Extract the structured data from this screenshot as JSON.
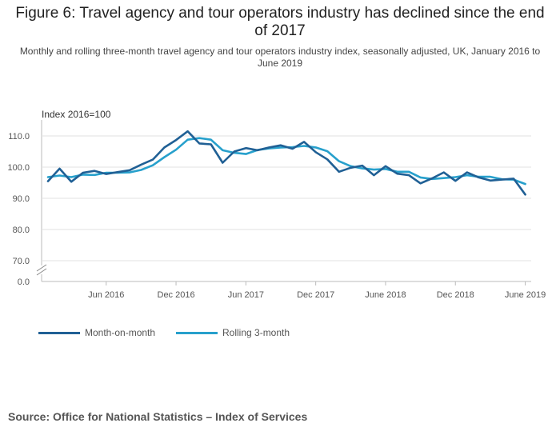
{
  "chart_data": {
    "type": "line",
    "title": "Figure 6: Travel agency and tour operators industry has declined since the end of 2017",
    "subtitle": "Monthly and rolling three-month travel agency and tour operators industry index, seasonally adjusted, UK, January 2016 to June 2019",
    "ylabel": "Index 2016=100",
    "y_ticks": [
      "110.0",
      "100.0",
      "90.0",
      "80.0",
      "70.0",
      "0.0"
    ],
    "y_break": true,
    "x_tick_labels": [
      {
        "label": "Jun 2016",
        "index": 5
      },
      {
        "label": "Dec 2016",
        "index": 11
      },
      {
        "label": "Jun 2017",
        "index": 17
      },
      {
        "label": "Dec 2017",
        "index": 23
      },
      {
        "label": "June 2018",
        "index": 29
      },
      {
        "label": "Dec 2018",
        "index": 35
      },
      {
        "label": "June 2019",
        "index": 41
      }
    ],
    "x_start": "Jan 2016",
    "x_end": "Jun 2019",
    "series": [
      {
        "name": "Month-on-month",
        "color": "#206095",
        "values": [
          95.5,
          99.5,
          95.3,
          98.2,
          98.8,
          97.8,
          98.4,
          99.0,
          100.8,
          102.4,
          106.3,
          108.7,
          111.5,
          107.6,
          107.3,
          101.4,
          105.0,
          106.1,
          105.4,
          106.3,
          107.0,
          105.9,
          108.1,
          104.8,
          102.5,
          98.5,
          99.8,
          100.5,
          97.4,
          100.3,
          97.9,
          97.4,
          94.8,
          96.4,
          98.3,
          95.6,
          98.3,
          96.7,
          95.7,
          96.0,
          96.3,
          91.2
        ]
      },
      {
        "name": "Rolling 3-month",
        "color": "#27a0cc",
        "values": [
          96.8,
          97.3,
          96.8,
          97.6,
          97.5,
          98.2,
          98.2,
          98.3,
          99.1,
          100.6,
          103.2,
          105.6,
          108.8,
          109.3,
          108.8,
          105.4,
          104.6,
          104.2,
          105.5,
          106.0,
          106.3,
          106.4,
          106.8,
          106.3,
          105.1,
          101.9,
          100.3,
          99.6,
          99.2,
          99.4,
          98.5,
          98.5,
          96.7,
          96.2,
          96.5,
          96.8,
          97.4,
          96.9,
          96.9,
          96.1,
          96.0,
          94.6
        ]
      }
    ]
  },
  "legend": [
    {
      "label": "Month-on-month",
      "color": "#206095"
    },
    {
      "label": "Rolling 3-month",
      "color": "#27a0cc"
    }
  ],
  "source": "Source: Office for National Statistics – Index of Services"
}
